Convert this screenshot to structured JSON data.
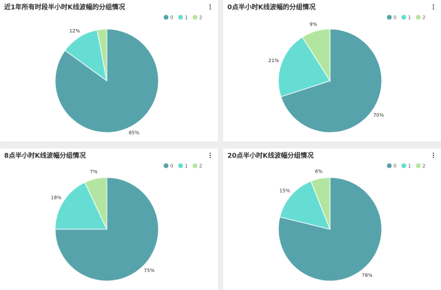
{
  "chart_data": [
    {
      "type": "pie",
      "title": "近1年所有时段半小时K线波幅的分组情况",
      "categories": [
        "0",
        "1",
        "2"
      ],
      "values": [
        85,
        12,
        3
      ],
      "value_labels": [
        "85%",
        "12%",
        null
      ],
      "colors": [
        "#57a3ab",
        "#66ddd3",
        "#b2e6a0"
      ],
      "legend": "top-right"
    },
    {
      "type": "pie",
      "title": "0点半小时K线波幅的分组情况",
      "categories": [
        "0",
        "1",
        "2"
      ],
      "values": [
        70,
        21,
        9
      ],
      "value_labels": [
        "70%",
        "21%",
        "9%"
      ],
      "colors": [
        "#57a3ab",
        "#66ddd3",
        "#b2e6a0"
      ],
      "legend": "top-right"
    },
    {
      "type": "pie",
      "title": "8点半小时K线波幅分组情况",
      "categories": [
        "0",
        "1",
        "2"
      ],
      "values": [
        75,
        18,
        7
      ],
      "value_labels": [
        "75%",
        "18%",
        "7%"
      ],
      "colors": [
        "#57a3ab",
        "#66ddd3",
        "#b2e6a0"
      ],
      "legend": "top-right"
    },
    {
      "type": "pie",
      "title": "20点半小时K线波幅分组情况",
      "categories": [
        "0",
        "1",
        "2"
      ],
      "values": [
        78,
        15,
        6
      ],
      "value_labels": [
        "78%",
        "15%",
        "6%"
      ],
      "colors": [
        "#57a3ab",
        "#66ddd3",
        "#b2e6a0"
      ],
      "legend": "top-right"
    }
  ]
}
